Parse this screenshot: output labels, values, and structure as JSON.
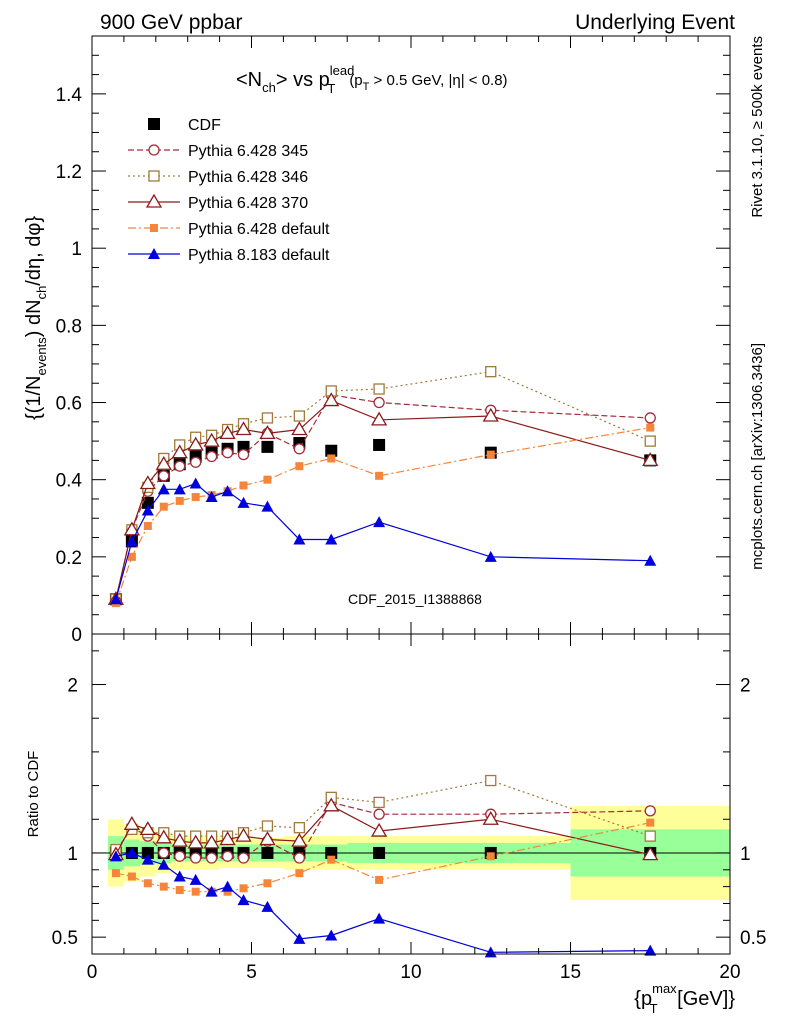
{
  "header": {
    "left": "900 GeV ppbar",
    "right": "Underlying Event"
  },
  "side_labels": {
    "rivet": "Rivet 3.1.10, ≥ 500k events",
    "mcplots": "mcplots.cern.ch [arXiv:1306.3436]"
  },
  "title": {
    "main": "<N",
    "sub1": "ch",
    "mid": "> vs p",
    "supT": "lead",
    "subT": "T",
    "cut_open": "(p",
    "cut_sub": "T",
    "cut_rest": " > 0.5 GeV, |η| < 0.8)"
  },
  "watermark": "CDF_2015_I1388868",
  "ylabel_top": {
    "a": "{(1/N",
    "b": "events",
    "c": ") dN",
    "d": "ch",
    "e": "/dη, dφ}"
  },
  "ylabel_bottom": "Ratio to CDF",
  "xlabel": {
    "a": "{p",
    "sup": "max",
    "sub": "T",
    "b": " [GeV]}"
  },
  "legend": [
    {
      "label": "CDF",
      "key": "cdf"
    },
    {
      "label": "Pythia 6.428 345",
      "key": "p345"
    },
    {
      "label": "Pythia 6.428 346",
      "key": "p346"
    },
    {
      "label": "Pythia 6.428 370",
      "key": "p370"
    },
    {
      "label": "Pythia 6.428 default",
      "key": "p6def"
    },
    {
      "label": "Pythia 8.183 default",
      "key": "p8def"
    }
  ],
  "chart_data": {
    "type": "scatter",
    "x_range": [
      0,
      20
    ],
    "x_ticks": [
      0,
      5,
      10,
      15,
      20
    ],
    "x_tick_labels": [
      "0",
      "5",
      "10",
      "15",
      "20"
    ],
    "main": {
      "y_range": [
        0,
        1.55
      ],
      "y_ticks": [
        0,
        0.2,
        0.4,
        0.6,
        0.8,
        1,
        1.2,
        1.4
      ],
      "y_tick_labels": [
        "0",
        "0.2",
        "0.4",
        "0.6",
        "0.8",
        "1",
        "1.2",
        "1.4"
      ]
    },
    "ratio": {
      "y_range": [
        0.4,
        2.3
      ],
      "y_ticks": [
        0.5,
        1,
        2
      ],
      "y_tick_labels": [
        "0.5",
        "1",
        "2"
      ]
    },
    "x": [
      0.75,
      1.25,
      1.75,
      2.25,
      2.75,
      3.25,
      3.75,
      4.25,
      4.75,
      5.5,
      6.5,
      7.5,
      9.0,
      12.5,
      17.5
    ],
    "series": [
      {
        "key": "cdf",
        "name": "CDF",
        "color": "#000000",
        "values": [
          0.09,
          0.24,
          0.34,
          0.41,
          0.44,
          0.46,
          0.47,
          0.48,
          0.485,
          0.485,
          0.495,
          0.475,
          0.49,
          0.47,
          0.45
        ],
        "ratio": [
          1,
          1,
          1,
          1,
          1,
          1,
          1,
          1,
          1,
          1,
          1,
          1,
          1,
          1,
          1
        ]
      },
      {
        "key": "p345",
        "name": "Pythia 6.428 345",
        "color": "#a52a3a",
        "values": [
          0.09,
          0.27,
          0.37,
          0.41,
          0.435,
          0.445,
          0.46,
          0.47,
          0.465,
          0.52,
          0.48,
          0.62,
          0.6,
          0.58,
          0.56
        ],
        "ratio": [
          1.01,
          1.15,
          1.1,
          1.0,
          0.98,
          0.97,
          0.97,
          0.98,
          0.97,
          1.07,
          0.97,
          1.3,
          1.23,
          1.23,
          1.25
        ]
      },
      {
        "key": "p346",
        "name": "Pythia 6.428 346",
        "color": "#a07a3a",
        "values": [
          0.09,
          0.27,
          0.38,
          0.455,
          0.49,
          0.51,
          0.515,
          0.53,
          0.545,
          0.56,
          0.565,
          0.63,
          0.635,
          0.68,
          0.5
        ],
        "ratio": [
          1.02,
          1.14,
          1.12,
          1.12,
          1.1,
          1.1,
          1.1,
          1.1,
          1.12,
          1.16,
          1.15,
          1.33,
          1.3,
          1.43,
          1.1
        ]
      },
      {
        "key": "p370",
        "name": "Pythia 6.428 370",
        "color": "#8b1a1a",
        "values": [
          0.09,
          0.27,
          0.39,
          0.44,
          0.47,
          0.49,
          0.5,
          0.52,
          0.53,
          0.52,
          0.53,
          0.605,
          0.555,
          0.565,
          0.45
        ],
        "ratio": [
          0.99,
          1.17,
          1.14,
          1.09,
          1.07,
          1.06,
          1.06,
          1.08,
          1.1,
          1.08,
          1.07,
          1.28,
          1.13,
          1.2,
          0.99
        ]
      },
      {
        "key": "p6def",
        "name": "Pythia 6.428 default",
        "color": "#f4853a",
        "values": [
          0.08,
          0.2,
          0.28,
          0.33,
          0.345,
          0.355,
          0.36,
          0.37,
          0.385,
          0.4,
          0.435,
          0.455,
          0.41,
          0.465,
          0.535
        ],
        "ratio": [
          0.88,
          0.86,
          0.82,
          0.8,
          0.78,
          0.77,
          0.77,
          0.77,
          0.79,
          0.82,
          0.88,
          0.96,
          0.84,
          0.98,
          1.18
        ]
      },
      {
        "key": "p8def",
        "name": "Pythia 8.183 default",
        "color": "#0000dd",
        "values": [
          0.09,
          0.24,
          0.32,
          0.375,
          0.375,
          0.39,
          0.355,
          0.37,
          0.34,
          0.33,
          0.245,
          0.245,
          0.29,
          0.2,
          0.19
        ],
        "ratio": [
          0.98,
          1.0,
          0.96,
          0.93,
          0.86,
          0.84,
          0.77,
          0.8,
          0.72,
          0.68,
          0.49,
          0.51,
          0.61,
          0.41,
          0.42
        ]
      }
    ],
    "band_bins": [
      0.5,
      1.0,
      1.5,
      2.0,
      2.5,
      3.0,
      3.5,
      4.0,
      4.5,
      5.0,
      6.0,
      7.0,
      8.0,
      10.0,
      15.0,
      20.0
    ],
    "band_inner": [
      0.1,
      0.08,
      0.07,
      0.06,
      0.05,
      0.05,
      0.05,
      0.05,
      0.05,
      0.05,
      0.05,
      0.05,
      0.06,
      0.06,
      0.14
    ],
    "band_outer": [
      0.2,
      0.17,
      0.14,
      0.12,
      0.1,
      0.1,
      0.1,
      0.09,
      0.09,
      0.09,
      0.1,
      0.1,
      0.1,
      0.1,
      0.28
    ]
  }
}
